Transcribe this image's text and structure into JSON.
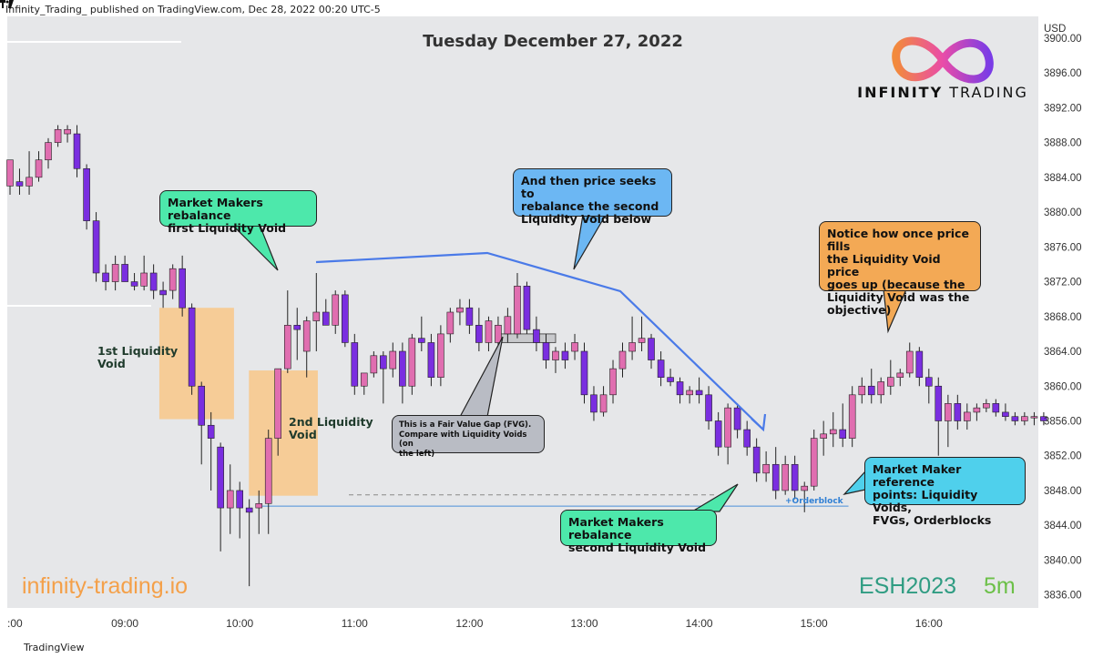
{
  "header": {
    "published": "Infinity_Trading_ published on TradingView.com, Dec 28, 2022 00:20 UTC-5"
  },
  "chart_title": "Tuesday December 27, 2022",
  "brand": {
    "name_bold": "INFINITY",
    "name_light": " TRADING",
    "website": "infinity-trading.io",
    "ticker": "ESH2023",
    "timeframe": "5m"
  },
  "footer": {
    "platform": "TradingView"
  },
  "colors": {
    "bull": "#e06eb0",
    "bear": "#7a2ee0",
    "void": "#f7c98e",
    "green_callout": "#4de8ab",
    "blue_callout": "#6cb7f3",
    "orange_callout": "#f3a955",
    "gray_callout": "#b9bcc4",
    "cyan_callout": "#4fd0ec",
    "arrow": "#4a7ae8",
    "orderblock": "#4a90d9",
    "bg": "#e6e7e9"
  },
  "annotations": {
    "rebalance_first": [
      "Market Makers rebalance",
      "first Liquidity Void"
    ],
    "seeks": [
      "And then price seeks to",
      "rebalance the second",
      "Liquidity Void below"
    ],
    "notice": [
      "Notice how once price fills",
      "the Liquidity Void price",
      "goes up (because the",
      "Liquidity Void was the",
      "objective)"
    ],
    "fvg": [
      "This is a Fair Value Gap (FVG).",
      "Compare with Liquidity Voids (on",
      "the left)"
    ],
    "rebalance_second": [
      "Market Makers rebalance",
      "second Liquidity Void"
    ],
    "reference": [
      "Market Maker reference",
      "points: Liquidity Voids,",
      "FVGs, Orderblocks"
    ],
    "void1": [
      "1st Liquidity",
      "Void"
    ],
    "void2": [
      "2nd Liquidity",
      "Void"
    ],
    "orderblock": "+Orderblock"
  },
  "chart_data": {
    "type": "candlestick",
    "title": "Tuesday December 27, 2022",
    "y_axis": {
      "label": "USD",
      "ticks": [
        3836,
        3840,
        3844,
        3848,
        3852,
        3856,
        3860,
        3864,
        3868,
        3872,
        3876,
        3880,
        3884,
        3888,
        3892,
        3896,
        3900
      ],
      "range": [
        3834.5,
        3902.5
      ],
      "tick_labels": [
        "3836.00",
        "3840.00",
        "3844.00",
        "3848.00",
        "3852.00",
        "3856.00",
        "3860.00",
        "3864.00",
        "3868.00",
        "3872.00",
        "3876.00",
        "3880.00",
        "3884.00",
        "3888.00",
        "3892.00",
        "3896.00",
        "3900.00"
      ]
    },
    "x_axis": {
      "ticks": [
        {
          "label": ":00",
          "t": 8.0
        },
        {
          "label": "09:00",
          "t": 9.0
        },
        {
          "label": "10:00",
          "t": 10.0
        },
        {
          "label": "11:00",
          "t": 11.0
        },
        {
          "label": "12:00",
          "t": 12.0
        },
        {
          "label": "13:00",
          "t": 13.0
        },
        {
          "label": "14:00",
          "t": 14.0
        },
        {
          "label": "15:00",
          "t": 15.0
        },
        {
          "label": "16:00",
          "t": 16.0
        }
      ]
    },
    "levels": [
      {
        "name": "orderblock",
        "price": 3846.2,
        "from": 10.15,
        "to": 15.3
      },
      {
        "name": "fvg-dashed",
        "price": 3847.5,
        "from": 10.95,
        "to": 14.15
      }
    ],
    "liquidity_voids": [
      {
        "name": "1st Liquidity Void",
        "from": 9.3,
        "to": 9.95,
        "high": 3869.0,
        "low": 3856.2
      },
      {
        "name": "2nd Liquidity Void",
        "from": 10.08,
        "to": 10.68,
        "high": 3861.8,
        "low": 3847.4
      }
    ],
    "fvg_box": {
      "from": 12.27,
      "to": 12.75,
      "high": 3866.0,
      "low": 3865.0
    },
    "candles": [
      {
        "t": 8.0,
        "o": 3883,
        "h": 3886,
        "l": 3882,
        "c": 3886
      },
      {
        "t": 8.083,
        "o": 3883.5,
        "h": 3885,
        "l": 3882,
        "c": 3883
      },
      {
        "t": 8.167,
        "o": 3883,
        "h": 3887,
        "l": 3882,
        "c": 3884
      },
      {
        "t": 8.25,
        "o": 3884,
        "h": 3887,
        "l": 3883.5,
        "c": 3886
      },
      {
        "t": 8.333,
        "o": 3886,
        "h": 3888.5,
        "l": 3885,
        "c": 3888
      },
      {
        "t": 8.417,
        "o": 3888,
        "h": 3890,
        "l": 3887.5,
        "c": 3889.5
      },
      {
        "t": 8.5,
        "o": 3889,
        "h": 3890,
        "l": 3888,
        "c": 3889.5
      },
      {
        "t": 8.583,
        "o": 3889,
        "h": 3890,
        "l": 3884,
        "c": 3885
      },
      {
        "t": 8.667,
        "o": 3885,
        "h": 3885.5,
        "l": 3878,
        "c": 3879
      },
      {
        "t": 8.75,
        "o": 3879,
        "h": 3880,
        "l": 3872,
        "c": 3873
      },
      {
        "t": 8.833,
        "o": 3873,
        "h": 3874,
        "l": 3871,
        "c": 3872
      },
      {
        "t": 8.917,
        "o": 3872,
        "h": 3875,
        "l": 3871,
        "c": 3874
      },
      {
        "t": 9.0,
        "o": 3874,
        "h": 3875,
        "l": 3872,
        "c": 3872
      },
      {
        "t": 9.083,
        "o": 3872,
        "h": 3873,
        "l": 3871,
        "c": 3871.5
      },
      {
        "t": 9.167,
        "o": 3871.5,
        "h": 3875,
        "l": 3871,
        "c": 3873
      },
      {
        "t": 9.25,
        "o": 3873,
        "h": 3874,
        "l": 3870,
        "c": 3871
      },
      {
        "t": 9.333,
        "o": 3871,
        "h": 3872,
        "l": 3869,
        "c": 3870.5
      },
      {
        "t": 9.417,
        "o": 3871,
        "h": 3874,
        "l": 3870,
        "c": 3873.5
      },
      {
        "t": 9.5,
        "o": 3873.5,
        "h": 3875,
        "l": 3868,
        "c": 3869
      },
      {
        "t": 9.583,
        "o": 3869,
        "h": 3869.5,
        "l": 3859,
        "c": 3860
      },
      {
        "t": 9.667,
        "o": 3860,
        "h": 3860.5,
        "l": 3851,
        "c": 3855.5
      },
      {
        "t": 9.75,
        "o": 3855.5,
        "h": 3857,
        "l": 3848,
        "c": 3854
      },
      {
        "t": 9.833,
        "o": 3853,
        "h": 3853.5,
        "l": 3841,
        "c": 3846
      },
      {
        "t": 9.917,
        "o": 3846,
        "h": 3851,
        "l": 3843,
        "c": 3848
      },
      {
        "t": 10.0,
        "o": 3848,
        "h": 3849,
        "l": 3842.5,
        "c": 3846
      },
      {
        "t": 10.083,
        "o": 3846,
        "h": 3847,
        "l": 3837,
        "c": 3845.5
      },
      {
        "t": 10.167,
        "o": 3846,
        "h": 3848,
        "l": 3843,
        "c": 3846.5
      },
      {
        "t": 10.25,
        "o": 3846.5,
        "h": 3855,
        "l": 3843,
        "c": 3854
      },
      {
        "t": 10.333,
        "o": 3854,
        "h": 3862,
        "l": 3852,
        "c": 3862
      },
      {
        "t": 10.417,
        "o": 3862,
        "h": 3871,
        "l": 3861.5,
        "c": 3867
      },
      {
        "t": 10.5,
        "o": 3867,
        "h": 3869,
        "l": 3863,
        "c": 3866.5
      },
      {
        "t": 10.583,
        "o": 3864,
        "h": 3868,
        "l": 3861,
        "c": 3867.5
      },
      {
        "t": 10.667,
        "o": 3867.5,
        "h": 3873,
        "l": 3864,
        "c": 3868.5
      },
      {
        "t": 10.75,
        "o": 3868.5,
        "h": 3870,
        "l": 3867,
        "c": 3867
      },
      {
        "t": 10.833,
        "o": 3867,
        "h": 3871,
        "l": 3866,
        "c": 3870.5
      },
      {
        "t": 10.917,
        "o": 3870.5,
        "h": 3871,
        "l": 3864.5,
        "c": 3865
      },
      {
        "t": 11.0,
        "o": 3865,
        "h": 3866,
        "l": 3859,
        "c": 3860
      },
      {
        "t": 11.083,
        "o": 3860,
        "h": 3861,
        "l": 3859,
        "c": 3861.5
      },
      {
        "t": 11.167,
        "o": 3861.5,
        "h": 3864,
        "l": 3861,
        "c": 3863.5
      },
      {
        "t": 11.25,
        "o": 3863.5,
        "h": 3864,
        "l": 3858,
        "c": 3862
      },
      {
        "t": 11.333,
        "o": 3862,
        "h": 3865,
        "l": 3861,
        "c": 3864
      },
      {
        "t": 11.417,
        "o": 3864,
        "h": 3865,
        "l": 3858,
        "c": 3860
      },
      {
        "t": 11.5,
        "o": 3860,
        "h": 3866,
        "l": 3859,
        "c": 3865.5
      },
      {
        "t": 11.583,
        "o": 3865.5,
        "h": 3868,
        "l": 3864,
        "c": 3865
      },
      {
        "t": 11.667,
        "o": 3865,
        "h": 3866,
        "l": 3860,
        "c": 3861
      },
      {
        "t": 11.75,
        "o": 3861,
        "h": 3867,
        "l": 3860,
        "c": 3866
      },
      {
        "t": 11.833,
        "o": 3866,
        "h": 3869,
        "l": 3865,
        "c": 3868.5
      },
      {
        "t": 11.917,
        "o": 3868.5,
        "h": 3870,
        "l": 3867,
        "c": 3869
      },
      {
        "t": 12.0,
        "o": 3869,
        "h": 3870,
        "l": 3866,
        "c": 3867
      },
      {
        "t": 12.083,
        "o": 3867,
        "h": 3869,
        "l": 3864,
        "c": 3865
      },
      {
        "t": 12.167,
        "o": 3865,
        "h": 3868,
        "l": 3864,
        "c": 3867.5
      },
      {
        "t": 12.25,
        "o": 3865,
        "h": 3868,
        "l": 3864,
        "c": 3867
      },
      {
        "t": 12.333,
        "o": 3866,
        "h": 3869,
        "l": 3865,
        "c": 3868
      },
      {
        "t": 12.417,
        "o": 3866,
        "h": 3873,
        "l": 3865.5,
        "c": 3871.5
      },
      {
        "t": 12.5,
        "o": 3871.5,
        "h": 3872,
        "l": 3866,
        "c": 3866.5
      },
      {
        "t": 12.583,
        "o": 3866.5,
        "h": 3868,
        "l": 3864,
        "c": 3865
      },
      {
        "t": 12.667,
        "o": 3865,
        "h": 3866,
        "l": 3862,
        "c": 3863
      },
      {
        "t": 12.75,
        "o": 3863,
        "h": 3864.5,
        "l": 3861.5,
        "c": 3864
      },
      {
        "t": 12.833,
        "o": 3864,
        "h": 3865,
        "l": 3862,
        "c": 3863
      },
      {
        "t": 12.917,
        "o": 3864,
        "h": 3866,
        "l": 3863,
        "c": 3865
      },
      {
        "t": 13.0,
        "o": 3864,
        "h": 3865,
        "l": 3858,
        "c": 3859
      },
      {
        "t": 13.083,
        "o": 3859,
        "h": 3860,
        "l": 3856,
        "c": 3857
      },
      {
        "t": 13.167,
        "o": 3857,
        "h": 3860,
        "l": 3856.5,
        "c": 3859
      },
      {
        "t": 13.25,
        "o": 3859,
        "h": 3863,
        "l": 3858,
        "c": 3862
      },
      {
        "t": 13.333,
        "o": 3862,
        "h": 3865,
        "l": 3861,
        "c": 3864
      },
      {
        "t": 13.417,
        "o": 3864,
        "h": 3868,
        "l": 3863,
        "c": 3865
      },
      {
        "t": 13.5,
        "o": 3865,
        "h": 3868,
        "l": 3864,
        "c": 3865.5
      },
      {
        "t": 13.583,
        "o": 3865.5,
        "h": 3866,
        "l": 3862,
        "c": 3863
      },
      {
        "t": 13.667,
        "o": 3863,
        "h": 3864,
        "l": 3860,
        "c": 3861
      },
      {
        "t": 13.75,
        "o": 3861,
        "h": 3862,
        "l": 3860,
        "c": 3860.5
      },
      {
        "t": 13.833,
        "o": 3860.5,
        "h": 3861,
        "l": 3858,
        "c": 3859
      },
      {
        "t": 13.917,
        "o": 3859,
        "h": 3860,
        "l": 3858,
        "c": 3859.5
      },
      {
        "t": 14.0,
        "o": 3859.5,
        "h": 3861,
        "l": 3858,
        "c": 3859
      },
      {
        "t": 14.083,
        "o": 3859,
        "h": 3860,
        "l": 3855,
        "c": 3856
      },
      {
        "t": 14.167,
        "o": 3856,
        "h": 3857,
        "l": 3852,
        "c": 3853
      },
      {
        "t": 14.25,
        "o": 3853,
        "h": 3858,
        "l": 3851,
        "c": 3857.5
      },
      {
        "t": 14.333,
        "o": 3857.5,
        "h": 3858,
        "l": 3854,
        "c": 3855
      },
      {
        "t": 14.417,
        "o": 3855,
        "h": 3856,
        "l": 3852,
        "c": 3853
      },
      {
        "t": 14.5,
        "o": 3853,
        "h": 3854,
        "l": 3849,
        "c": 3850
      },
      {
        "t": 14.583,
        "o": 3850,
        "h": 3852.5,
        "l": 3849,
        "c": 3851
      },
      {
        "t": 14.667,
        "o": 3851,
        "h": 3853,
        "l": 3847,
        "c": 3848
      },
      {
        "t": 14.75,
        "o": 3848,
        "h": 3852,
        "l": 3847.5,
        "c": 3851
      },
      {
        "t": 14.833,
        "o": 3851,
        "h": 3852,
        "l": 3847,
        "c": 3848
      },
      {
        "t": 14.917,
        "o": 3848,
        "h": 3849,
        "l": 3845.5,
        "c": 3848.5
      },
      {
        "t": 15.0,
        "o": 3848.5,
        "h": 3855,
        "l": 3848,
        "c": 3854
      },
      {
        "t": 15.083,
        "o": 3854,
        "h": 3856,
        "l": 3852,
        "c": 3854.5
      },
      {
        "t": 15.167,
        "o": 3854.5,
        "h": 3857,
        "l": 3853,
        "c": 3855
      },
      {
        "t": 15.25,
        "o": 3855,
        "h": 3858,
        "l": 3853,
        "c": 3854
      },
      {
        "t": 15.333,
        "o": 3854,
        "h": 3860,
        "l": 3853,
        "c": 3859
      },
      {
        "t": 15.417,
        "o": 3859,
        "h": 3861,
        "l": 3858,
        "c": 3860
      },
      {
        "t": 15.5,
        "o": 3860,
        "h": 3862,
        "l": 3858,
        "c": 3859
      },
      {
        "t": 15.583,
        "o": 3859,
        "h": 3861,
        "l": 3858,
        "c": 3860.5
      },
      {
        "t": 15.667,
        "o": 3860,
        "h": 3863,
        "l": 3859,
        "c": 3861
      },
      {
        "t": 15.75,
        "o": 3861,
        "h": 3862,
        "l": 3860,
        "c": 3861.5
      },
      {
        "t": 15.833,
        "o": 3861.5,
        "h": 3865,
        "l": 3861,
        "c": 3864
      },
      {
        "t": 15.917,
        "o": 3864,
        "h": 3864.5,
        "l": 3860,
        "c": 3861
      },
      {
        "t": 16.0,
        "o": 3861,
        "h": 3862,
        "l": 3858,
        "c": 3860
      },
      {
        "t": 16.083,
        "o": 3860,
        "h": 3861,
        "l": 3852,
        "c": 3856
      },
      {
        "t": 16.167,
        "o": 3856,
        "h": 3859,
        "l": 3853,
        "c": 3858
      },
      {
        "t": 16.25,
        "o": 3858,
        "h": 3859,
        "l": 3855,
        "c": 3856
      },
      {
        "t": 16.333,
        "o": 3856,
        "h": 3858,
        "l": 3855,
        "c": 3857
      },
      {
        "t": 16.417,
        "o": 3857,
        "h": 3858,
        "l": 3856,
        "c": 3857.5
      },
      {
        "t": 16.5,
        "o": 3857.5,
        "h": 3858.5,
        "l": 3857,
        "c": 3858
      },
      {
        "t": 16.583,
        "o": 3858,
        "h": 3858.5,
        "l": 3856.5,
        "c": 3857
      },
      {
        "t": 16.667,
        "o": 3857,
        "h": 3858,
        "l": 3856,
        "c": 3856.5
      },
      {
        "t": 16.75,
        "o": 3856.5,
        "h": 3857,
        "l": 3855.5,
        "c": 3856
      },
      {
        "t": 16.833,
        "o": 3856,
        "h": 3857,
        "l": 3855.5,
        "c": 3856.5
      },
      {
        "t": 16.917,
        "o": 3856.5,
        "h": 3857,
        "l": 3855.5,
        "c": 3856.5
      },
      {
        "t": 17.0,
        "o": 3856.5,
        "h": 3857,
        "l": 3855.5,
        "c": 3856
      }
    ]
  }
}
